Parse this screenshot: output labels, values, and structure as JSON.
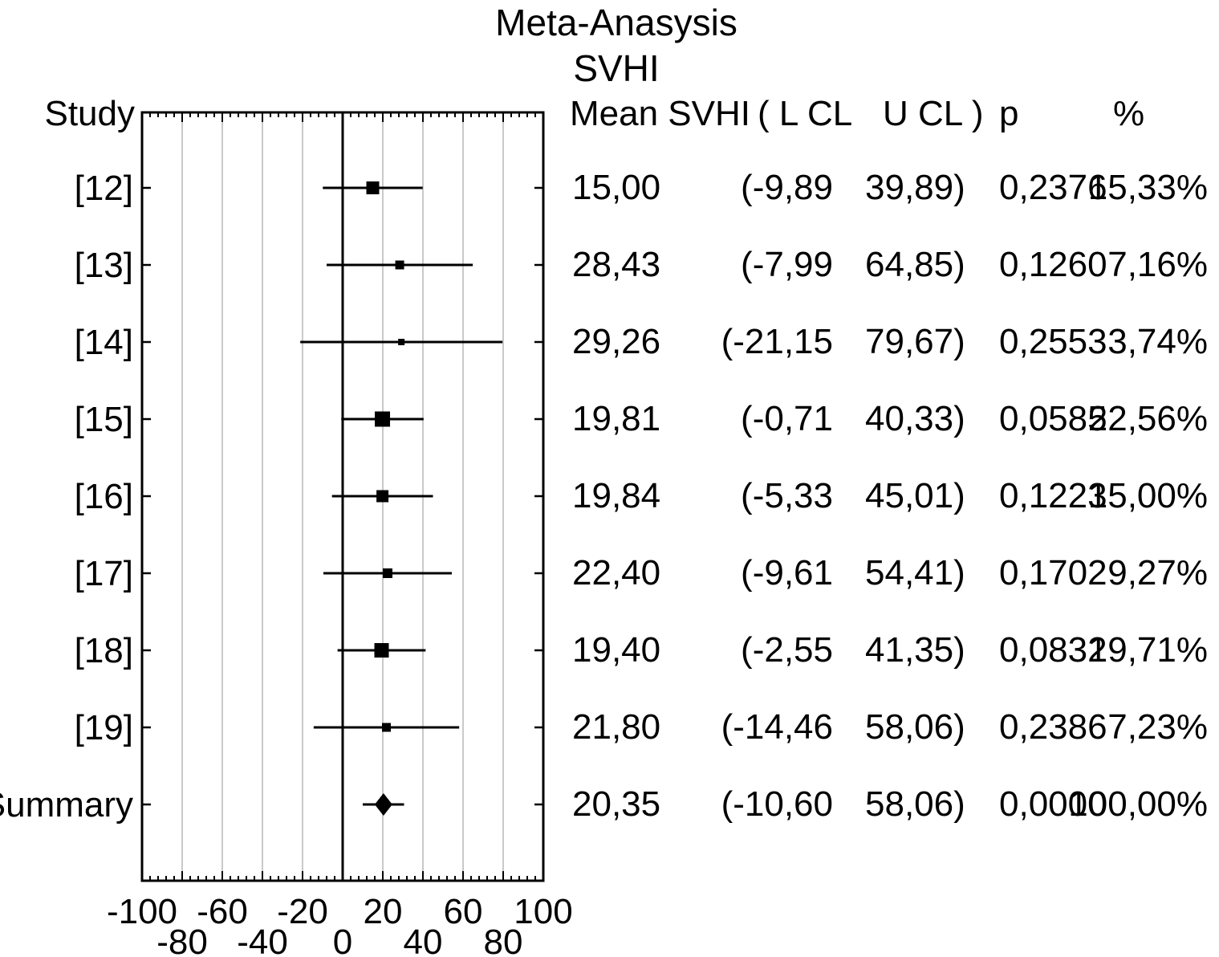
{
  "chart_data": {
    "type": "forest",
    "title": "Meta-Anasysis",
    "subtitle": "SVHI",
    "columns": {
      "study": "Study",
      "mean": "Mean SVHI",
      "lcl": "( L CL",
      "ucl": "U CL )",
      "p": "p",
      "weight": "%"
    },
    "x_axis": {
      "min": -100,
      "max": 100,
      "major_step": 20,
      "minor_step": 4,
      "grid": true,
      "tick_labels_upper": [
        "-100",
        "-60",
        "-20",
        "20",
        "60",
        "100"
      ],
      "tick_labels_lower": [
        "-80",
        "-40",
        "0",
        "40",
        "80"
      ]
    },
    "rows": [
      {
        "type": "study",
        "label": "[12]",
        "mean": 15.0,
        "lcl": -9.89,
        "ucl": 39.89,
        "weight_pct": 15.33,
        "mean_text": "15,00",
        "lcl_text": "(-9,89",
        "ucl_text": "39,89)",
        "p_text": "0,2376",
        "weight_text": "15,33%"
      },
      {
        "type": "study",
        "label": "[13]",
        "mean": 28.43,
        "lcl": -7.99,
        "ucl": 64.85,
        "weight_pct": 7.16,
        "mean_text": "28,43",
        "lcl_text": "(-7,99",
        "ucl_text": "64,85)",
        "p_text": "0,1260",
        "weight_text": "7,16%"
      },
      {
        "type": "study",
        "label": "[14]",
        "mean": 29.26,
        "lcl": -21.15,
        "ucl": 79.67,
        "weight_pct": 3.74,
        "mean_text": "29,26",
        "lcl_text": "(-21,15",
        "ucl_text": "79,67)",
        "p_text": "0,2553",
        "weight_text": "3,74%"
      },
      {
        "type": "study",
        "label": "[15]",
        "mean": 19.81,
        "lcl": -0.71,
        "ucl": 40.33,
        "weight_pct": 22.56,
        "mean_text": "19,81",
        "lcl_text": "(-0,71",
        "ucl_text": "40,33)",
        "p_text": "0,0585",
        "weight_text": "22,56%"
      },
      {
        "type": "study",
        "label": "[16]",
        "mean": 19.84,
        "lcl": -5.33,
        "ucl": 45.01,
        "weight_pct": 15.0,
        "mean_text": "19,84",
        "lcl_text": "(-5,33",
        "ucl_text": "45,01)",
        "p_text": "0,1223",
        "weight_text": "15,00%"
      },
      {
        "type": "study",
        "label": "[17]",
        "mean": 22.4,
        "lcl": -9.61,
        "ucl": 54.41,
        "weight_pct": 9.27,
        "mean_text": "22,40",
        "lcl_text": "(-9,61",
        "ucl_text": "54,41)",
        "p_text": "0,1702",
        "weight_text": "9,27%"
      },
      {
        "type": "study",
        "label": "[18]",
        "mean": 19.4,
        "lcl": -2.55,
        "ucl": 41.35,
        "weight_pct": 19.71,
        "mean_text": "19,40",
        "lcl_text": "(-2,55",
        "ucl_text": "41,35)",
        "p_text": "0,0832",
        "weight_text": "19,71%"
      },
      {
        "type": "study",
        "label": "[19]",
        "mean": 21.8,
        "lcl": -14.46,
        "ucl": 58.06,
        "weight_pct": 7.23,
        "mean_text": "21,80",
        "lcl_text": "(-14,46",
        "ucl_text": "58,06)",
        "p_text": "0,2386",
        "weight_text": "7,23%"
      },
      {
        "type": "summary",
        "label": "Summary",
        "mean": 20.35,
        "lcl": -10.6,
        "ucl": 58.06,
        "weight_pct": 100.0,
        "plot_lcl": 10.0,
        "plot_ucl": 30.6,
        "mean_text": "20,35",
        "lcl_text": "(-10,60",
        "ucl_text": "58,06)",
        "p_text": "0,0000",
        "weight_text": "100,00%"
      }
    ],
    "colors": {
      "text": "#000000",
      "marker": "#000000",
      "grid": "#c9c9c9",
      "background": "#ffffff"
    }
  }
}
